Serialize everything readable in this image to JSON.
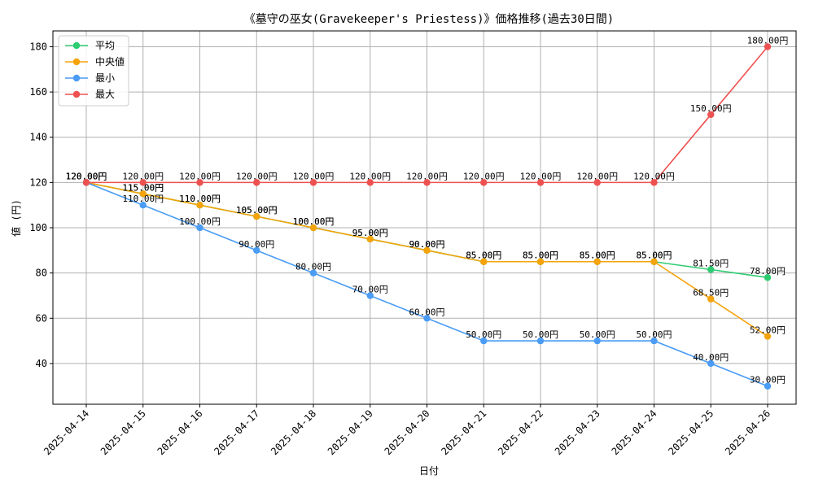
{
  "chart_data": {
    "type": "line",
    "title": "《墓守の巫女(Gravekeeper's Priestess)》価格推移(過去30日間)",
    "xlabel": "日付",
    "ylabel": "値 (円)",
    "ylim": [
      22,
      187
    ],
    "yticks": [
      40,
      60,
      80,
      100,
      120,
      140,
      160,
      180
    ],
    "grid": true,
    "legend_position": "top-left",
    "label_suffix": "円",
    "categories": [
      "2025-04-14",
      "2025-04-15",
      "2025-04-16",
      "2025-04-17",
      "2025-04-18",
      "2025-04-19",
      "2025-04-20",
      "2025-04-21",
      "2025-04-22",
      "2025-04-23",
      "2025-04-24",
      "2025-04-25",
      "2025-04-26"
    ],
    "series": [
      {
        "name": "平均",
        "color": "#2ecc71",
        "values": [
          120,
          115,
          110,
          105,
          100,
          95,
          90,
          85,
          85,
          85,
          85,
          81.5,
          78
        ]
      },
      {
        "name": "中央値",
        "color": "#f5a30b",
        "values": [
          120,
          115,
          110,
          105,
          100,
          95,
          90,
          85,
          85,
          85,
          85,
          68.5,
          52
        ]
      },
      {
        "name": "最小",
        "color": "#4a9cf5",
        "values": [
          120,
          110,
          100,
          90,
          80,
          70,
          60,
          50,
          50,
          50,
          50,
          40,
          30
        ]
      },
      {
        "name": "最大",
        "color": "#ef5050",
        "values": [
          120,
          120,
          120,
          120,
          120,
          120,
          120,
          120,
          120,
          120,
          120,
          150,
          180
        ]
      }
    ]
  }
}
